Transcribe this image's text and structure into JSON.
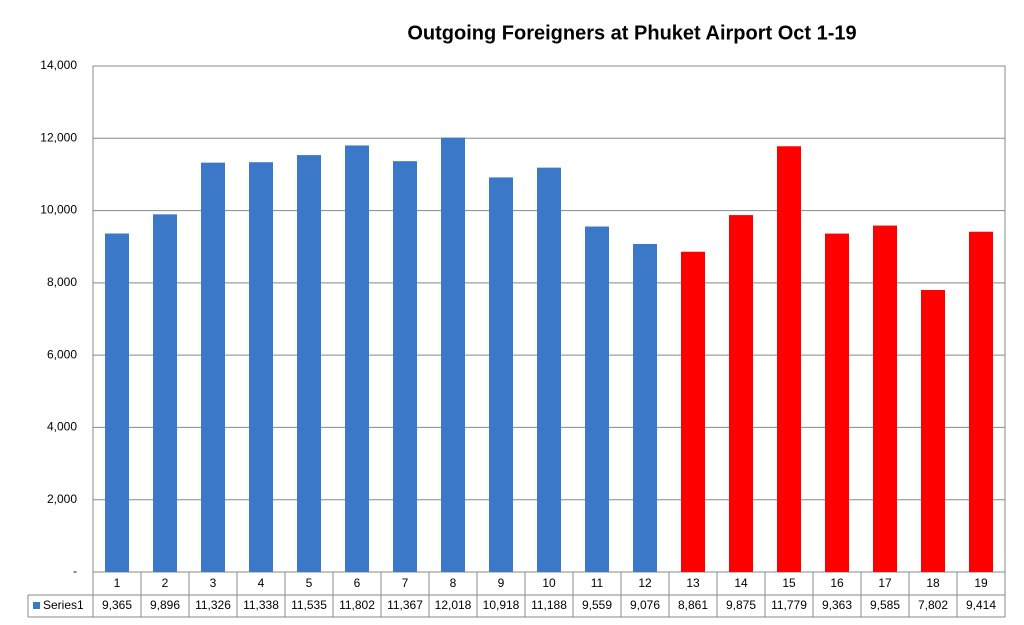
{
  "chart_data": {
    "type": "bar",
    "title": "Outgoing Foreigners at Phuket Airport Oct 1-19",
    "categories": [
      "1",
      "2",
      "3",
      "4",
      "5",
      "6",
      "7",
      "8",
      "9",
      "10",
      "11",
      "12",
      "13",
      "14",
      "15",
      "16",
      "17",
      "18",
      "19"
    ],
    "series": [
      {
        "name": "Series1",
        "color": "#3b78c8",
        "values": [
          9365,
          9896,
          11326,
          11338,
          11535,
          11802,
          11367,
          12018,
          10918,
          11188,
          9559,
          9076,
          8861,
          9875,
          11779,
          9363,
          9585,
          7802,
          9414
        ],
        "value_labels": [
          "9,365",
          "9,896",
          "11,326",
          "11,338",
          "11,535",
          "11,802",
          "11,367",
          "12,018",
          "10,918",
          "11,188",
          "9,559",
          "9,076",
          "8,861",
          "9,875",
          "11,779",
          "9,363",
          "9,585",
          "7,802",
          "9,414"
        ],
        "colors": [
          "#3b78c8",
          "#3b78c8",
          "#3b78c8",
          "#3b78c8",
          "#3b78c8",
          "#3b78c8",
          "#3b78c8",
          "#3b78c8",
          "#3b78c8",
          "#3b78c8",
          "#3b78c8",
          "#3b78c8",
          "#ff0000",
          "#ff0000",
          "#ff0000",
          "#ff0000",
          "#ff0000",
          "#ff0000",
          "#ff0000"
        ]
      }
    ],
    "ylim": [
      0,
      14000
    ],
    "yticks": [
      {
        "value": 0,
        "label": "-"
      },
      {
        "value": 2000,
        "label": "2,000"
      },
      {
        "value": 4000,
        "label": "4,000"
      },
      {
        "value": 6000,
        "label": "6,000"
      },
      {
        "value": 8000,
        "label": "8,000"
      },
      {
        "value": 10000,
        "label": "10,000"
      },
      {
        "value": 12000,
        "label": "12,000"
      },
      {
        "value": 14000,
        "label": "14,000"
      }
    ],
    "grid": true
  }
}
